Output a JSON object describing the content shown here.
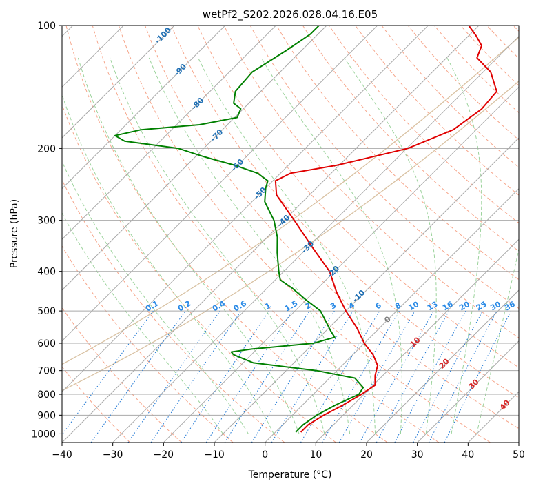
{
  "chart_data": {
    "type": "line",
    "subtype": "skew-t log-p diagram",
    "title": "wetPf2_S202.2026.028.04.16.E05",
    "xlabel": "Temperature (°C)",
    "ylabel": "Pressure (hPa)",
    "xlim": [
      -40,
      50
    ],
    "ylim_hpa": [
      1050,
      100
    ],
    "x_ticks": [
      -40,
      -30,
      -20,
      -10,
      0,
      10,
      20,
      30,
      40,
      50
    ],
    "x_tick_labels": [
      "−40",
      "−30",
      "−20",
      "−10",
      "0",
      "10",
      "20",
      "30",
      "40",
      "50"
    ],
    "y_ticks": [
      100,
      200,
      300,
      400,
      500,
      600,
      700,
      800,
      900,
      1000
    ],
    "y_tick_labels": [
      "100",
      "200",
      "300",
      "400",
      "500",
      "600",
      "700",
      "800",
      "900",
      "1000"
    ],
    "series": [
      {
        "name": "Temperature",
        "color": "#e00000",
        "points": [
          [
            990,
            5.0
          ],
          [
            950,
            5.0
          ],
          [
            900,
            6.2
          ],
          [
            850,
            8.0
          ],
          [
            800,
            9.5
          ],
          [
            760,
            10.4
          ],
          [
            720,
            8.5
          ],
          [
            680,
            7.0
          ],
          [
            640,
            4.0
          ],
          [
            600,
            0.0
          ],
          [
            550,
            -4.5
          ],
          [
            500,
            -10.0
          ],
          [
            450,
            -15.5
          ],
          [
            400,
            -21.0
          ],
          [
            350,
            -29.0
          ],
          [
            300,
            -38.0
          ],
          [
            260,
            -46.5
          ],
          [
            240,
            -49.5
          ],
          [
            230,
            -48.0
          ],
          [
            220,
            -40.5
          ],
          [
            200,
            -29.8
          ],
          [
            180,
            -24.5
          ],
          [
            160,
            -23.0
          ],
          [
            145,
            -23.5
          ],
          [
            130,
            -28.5
          ],
          [
            120,
            -34.0
          ],
          [
            112,
            -35.5
          ],
          [
            106,
            -38.5
          ],
          [
            100,
            -42.0
          ]
        ]
      },
      {
        "name": "Dewpoint",
        "color": "#008000",
        "points": [
          [
            990,
            4.0
          ],
          [
            950,
            4.0
          ],
          [
            900,
            4.8
          ],
          [
            850,
            6.5
          ],
          [
            800,
            9.0
          ],
          [
            770,
            8.5
          ],
          [
            730,
            5.0
          ],
          [
            700,
            -4.0
          ],
          [
            670,
            -18.0
          ],
          [
            640,
            -23.5
          ],
          [
            630,
            -24.5
          ],
          [
            620,
            -21.0
          ],
          [
            600,
            -10.0
          ],
          [
            580,
            -7.0
          ],
          [
            560,
            -9.0
          ],
          [
            500,
            -15.0
          ],
          [
            470,
            -20.0
          ],
          [
            440,
            -25.0
          ],
          [
            420,
            -29.0
          ],
          [
            400,
            -31.0
          ],
          [
            360,
            -35.0
          ],
          [
            330,
            -38.0
          ],
          [
            300,
            -42.0
          ],
          [
            270,
            -47.5
          ],
          [
            250,
            -50.0
          ],
          [
            240,
            -51.0
          ],
          [
            230,
            -54.5
          ],
          [
            220,
            -60.5
          ],
          [
            210,
            -68.0
          ],
          [
            200,
            -75.0
          ],
          [
            192,
            -87.0
          ],
          [
            186,
            -90.0
          ],
          [
            180,
            -86.0
          ],
          [
            175,
            -75.5
          ],
          [
            168,
            -69.5
          ],
          [
            160,
            -70.5
          ],
          [
            155,
            -73.0
          ],
          [
            145,
            -75.0
          ],
          [
            130,
            -75.5
          ],
          [
            115,
            -73.0
          ],
          [
            105,
            -71.5
          ],
          [
            100,
            -71.5
          ]
        ]
      }
    ],
    "isotherm_spacing_c": 10,
    "dry_adiabat_labels": [
      "-100",
      "-90",
      "-80",
      "-70",
      "-60",
      "-50",
      "-40",
      "-30",
      "-20",
      "-10",
      "0",
      "10",
      "20",
      "30",
      "40"
    ],
    "mixing_ratio_labels": [
      "0.1",
      "0.2",
      "0.4",
      "0.6",
      "1",
      "1.5",
      "2",
      "3",
      "4",
      "6",
      "8",
      "10",
      "13",
      "16",
      "20",
      "25",
      "30",
      "36"
    ],
    "colors": {
      "isotherm": "#a9a9a9",
      "isobar": "#a9a9a9",
      "dry_adiabat": "#f6a58a",
      "moist_adiabat": "#9cd39c",
      "mixing_ratio": "#1f77d4",
      "adiabat_label_cold": "#1f6fb4",
      "adiabat_label_warm": "#d62728",
      "mixing_label": "#2a8ae6",
      "tan_curve": "#d9c2a3"
    }
  }
}
